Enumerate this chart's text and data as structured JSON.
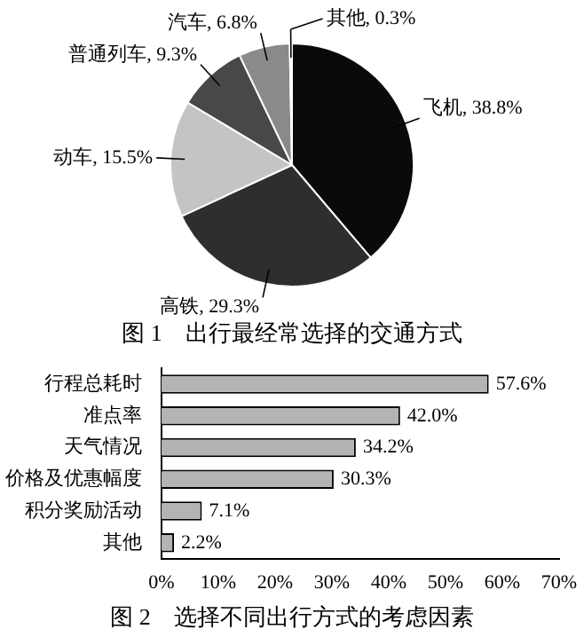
{
  "chart_data": [
    {
      "type": "pie",
      "title": "图 1　出行最经常选择的交通方式",
      "categories": [
        "飞机",
        "高铁",
        "动车",
        "普通列车",
        "汽车",
        "其他"
      ],
      "values": [
        38.8,
        29.3,
        15.5,
        9.3,
        6.8,
        0.3
      ],
      "value_labels": [
        "38.8%",
        "29.3%",
        "15.5%",
        "9.3%",
        "6.8%",
        "0.3%"
      ],
      "colors": [
        "#0a0a0a",
        "#2e2e2e",
        "#c4c4c4",
        "#484848",
        "#8a8a8a",
        "#d8d8d8"
      ],
      "legend": false
    },
    {
      "type": "bar",
      "orientation": "horizontal",
      "title": "图 2　选择不同出行方式的考虑因素",
      "categories": [
        "行程总耗时",
        "准点率",
        "天气情况",
        "价格及优惠幅度",
        "积分奖励活动",
        "其他"
      ],
      "values": [
        57.6,
        42.0,
        34.2,
        30.3,
        7.1,
        2.2
      ],
      "value_labels": [
        "57.6%",
        "42.0%",
        "34.2%",
        "30.3%",
        "7.1%",
        "2.2%"
      ],
      "color": "#b4b4b4",
      "xlim": [
        0,
        70
      ],
      "xticks": [
        {
          "value": 0,
          "label": "0%"
        },
        {
          "value": 10,
          "label": "10%"
        },
        {
          "value": 20,
          "label": "20%"
        },
        {
          "value": 30,
          "label": "30%"
        },
        {
          "value": 40,
          "label": "40%"
        },
        {
          "value": 50,
          "label": "50%"
        },
        {
          "value": 60,
          "label": "60%"
        },
        {
          "value": 70,
          "label": "70%"
        }
      ],
      "grid": false,
      "legend": false
    }
  ]
}
